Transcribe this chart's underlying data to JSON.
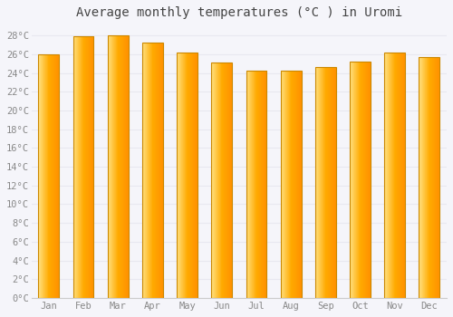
{
  "title": "Average monthly temperatures (°C ) in Uromi",
  "months": [
    "Jan",
    "Feb",
    "Mar",
    "Apr",
    "May",
    "Jun",
    "Jul",
    "Aug",
    "Sep",
    "Oct",
    "Nov",
    "Dec"
  ],
  "values": [
    26.0,
    27.9,
    28.0,
    27.3,
    26.2,
    25.1,
    24.3,
    24.3,
    24.7,
    25.2,
    26.2,
    25.7
  ],
  "bar_color_left": "#FFE080",
  "bar_color_mid": "#FFAA00",
  "bar_color_right": "#FF9800",
  "bar_edge_color": "#CC8800",
  "ylim": [
    0,
    29
  ],
  "yticks": [
    0,
    2,
    4,
    6,
    8,
    10,
    12,
    14,
    16,
    18,
    20,
    22,
    24,
    26,
    28
  ],
  "ytick_labels": [
    "0°C",
    "2°C",
    "4°C",
    "6°C",
    "8°C",
    "10°C",
    "12°C",
    "14°C",
    "16°C",
    "18°C",
    "20°C",
    "22°C",
    "24°C",
    "26°C",
    "28°C"
  ],
  "grid_color": "#e8e8f0",
  "background_color": "#f5f5fa",
  "plot_bg_color": "#f5f5fa",
  "title_fontsize": 10,
  "tick_fontsize": 7.5,
  "title_color": "#444444",
  "tick_color": "#888888",
  "font_family": "monospace",
  "bar_width": 0.6
}
